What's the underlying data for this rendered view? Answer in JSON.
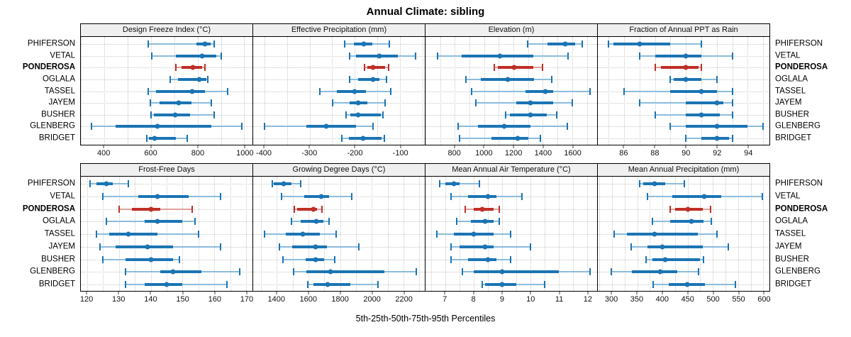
{
  "colors": {
    "series": "#1b74b4",
    "series_light": "#8cbcdc",
    "highlight": "#bf2f26",
    "highlight_light": "#dfa09a",
    "grid": "#c9c9c9",
    "strip_bg": "#f0f0f0",
    "panel_border": "#000000",
    "tick": "#404040"
  },
  "chart_data": {
    "type": "dotplot",
    "title": "Annual Climate: sibling",
    "xlabel": "5th-25th-50th-75th-95th Percentiles",
    "legend_note": "each row shows 5th-25th-50th-75th-95th percentile whisker/box/median-dot",
    "percentiles": [
      "5th",
      "25th",
      "50th",
      "75th",
      "95th"
    ],
    "stations": [
      "PHIFERSON",
      "VETAL",
      "PONDEROSA",
      "OGLALA",
      "TASSEL",
      "JAYEM",
      "BUSHER",
      "GLENBERG",
      "BRIDGET"
    ],
    "highlight_station": "PONDEROSA",
    "layout": {
      "rows": 2,
      "cols": 4,
      "grid": "dotted",
      "row_labels": "both-sides"
    },
    "panels": [
      {
        "title": "Design Freeze Index (°C)",
        "row": 0,
        "xlim": [
          300,
          1035
        ],
        "ticks": [
          400,
          600,
          800,
          1000
        ],
        "grid_step": 100,
        "values": [
          [
            590,
            795,
            833,
            856,
            870
          ],
          [
            605,
            707,
            818,
            880,
            902
          ],
          [
            707,
            730,
            780,
            820,
            831
          ],
          [
            682,
            717,
            808,
            838,
            843
          ],
          [
            588,
            622,
            776,
            833,
            930
          ],
          [
            598,
            637,
            720,
            773,
            860
          ],
          [
            601,
            612,
            704,
            768,
            870
          ],
          [
            345,
            450,
            627,
            858,
            990
          ],
          [
            581,
            591,
            617,
            707,
            755
          ]
        ]
      },
      {
        "title": "Effective Precipitation (mm)",
        "row": 0,
        "xlim": [
          -425,
          -45
        ],
        "ticks": [
          -400,
          -300,
          -200,
          -100
        ],
        "grid_step": 50,
        "values": [
          [
            -223,
            -202,
            -180,
            -161,
            -123
          ],
          [
            -211,
            -198,
            -146,
            -104,
            -65
          ],
          [
            -179,
            -172,
            -160,
            -133,
            -125
          ],
          [
            -211,
            -193,
            -160,
            -146,
            -130
          ],
          [
            -277,
            -240,
            -200,
            -175,
            -120
          ],
          [
            -249,
            -211,
            -193,
            -172,
            -133
          ],
          [
            -220,
            -210,
            -192,
            -142,
            -137
          ],
          [
            -400,
            -307,
            -263,
            -198,
            -160
          ],
          [
            -229,
            -213,
            -182,
            -140,
            -135
          ]
        ]
      },
      {
        "title": "Elevation (m)",
        "row": 0,
        "xlim": [
          600,
          1770
        ],
        "ticks": [
          800,
          1000,
          1200,
          1400,
          1600
        ],
        "grid_step": 100,
        "values": [
          [
            1295,
            1430,
            1552,
            1620,
            1668
          ],
          [
            682,
            848,
            1109,
            1333,
            1573
          ],
          [
            1069,
            1093,
            1202,
            1336,
            1397
          ],
          [
            877,
            976,
            1160,
            1341,
            1461
          ],
          [
            912,
            1282,
            1416,
            1469,
            1720
          ],
          [
            941,
            1221,
            1314,
            1469,
            1600
          ],
          [
            1146,
            1173,
            1314,
            1429,
            1493
          ],
          [
            821,
            957,
            1136,
            1317,
            1565
          ],
          [
            834,
            1048,
            1229,
            1301,
            1381
          ]
        ]
      },
      {
        "title": "Fraction of Annual PPT as Rain",
        "row": 0,
        "xlim": [
          84.3,
          95.4
        ],
        "ticks": [
          86,
          88,
          90,
          92,
          94
        ],
        "grid_step": 1,
        "values": [
          [
            85,
            85.3,
            87,
            89,
            91
          ],
          [
            87,
            88,
            90,
            91,
            93
          ],
          [
            88,
            88.4,
            90,
            90.8,
            91
          ],
          [
            89,
            89.2,
            90,
            91,
            92
          ],
          [
            86,
            89,
            91,
            92,
            93
          ],
          [
            87,
            90,
            92,
            92.4,
            93
          ],
          [
            88,
            90,
            91,
            92.2,
            93
          ],
          [
            89,
            90,
            92,
            94,
            95
          ],
          [
            90,
            91,
            92,
            92.8,
            93
          ]
        ]
      },
      {
        "title": "Frost-Free Days",
        "row": 1,
        "xlim": [
          118,
          172
        ],
        "ticks": [
          120,
          130,
          140,
          150,
          160,
          170
        ],
        "grid_step": 5,
        "values": [
          [
            121,
            123,
            126,
            128,
            133
          ],
          [
            125,
            136,
            142,
            152,
            162
          ],
          [
            130,
            134,
            140,
            143,
            153
          ],
          [
            126,
            138,
            142,
            150,
            154
          ],
          [
            123,
            127,
            133,
            142,
            155
          ],
          [
            124,
            129,
            139,
            147,
            162
          ],
          [
            125,
            132,
            140,
            147,
            149
          ],
          [
            132,
            143,
            147,
            156,
            168
          ],
          [
            132,
            138,
            145,
            150,
            164
          ]
        ]
      },
      {
        "title": "Growing Degree Days (°C)",
        "row": 1,
        "xlim": [
          1250,
          2335
        ],
        "ticks": [
          1400,
          1600,
          1800,
          2000,
          2200
        ],
        "grid_step": 100,
        "values": [
          [
            1370,
            1382,
            1445,
            1490,
            1550
          ],
          [
            1430,
            1575,
            1680,
            1730,
            1875
          ],
          [
            1510,
            1530,
            1630,
            1655,
            1685
          ],
          [
            1490,
            1552,
            1650,
            1695,
            1730
          ],
          [
            1320,
            1455,
            1565,
            1670,
            1775
          ],
          [
            1415,
            1495,
            1645,
            1715,
            1920
          ],
          [
            1440,
            1580,
            1645,
            1700,
            1765
          ],
          [
            1505,
            1585,
            1740,
            2080,
            2280
          ],
          [
            1595,
            1630,
            1720,
            1865,
            2040
          ]
        ]
      },
      {
        "title": "Mean Annual Air Temperature (°C)",
        "row": 1,
        "xlim": [
          6.3,
          12.35
        ],
        "ticks": [
          7,
          8,
          9,
          10,
          11,
          12
        ],
        "grid_step": 0.5,
        "values": [
          [
            6.8,
            7.0,
            7.3,
            7.5,
            8.2
          ],
          [
            7.2,
            7.8,
            8.5,
            8.8,
            9.7
          ],
          [
            7.7,
            8.0,
            8.3,
            8.7,
            8.9
          ],
          [
            7.4,
            7.9,
            8.4,
            8.7,
            8.9
          ],
          [
            6.7,
            7.3,
            8.0,
            8.7,
            9.3
          ],
          [
            7.2,
            7.5,
            8.4,
            8.7,
            10.0
          ],
          [
            7.2,
            7.8,
            8.5,
            8.8,
            9.3
          ],
          [
            7.6,
            8.0,
            9.0,
            11.0,
            12.1
          ],
          [
            8.3,
            8.4,
            9.0,
            9.5,
            10.5
          ]
        ]
      },
      {
        "title": "Mean Annual Precipitation (mm)",
        "row": 1,
        "xlim": [
          272,
          612
        ],
        "ticks": [
          300,
          350,
          400,
          450,
          500,
          550,
          600
        ],
        "grid_step": 25,
        "values": [
          [
            355,
            362,
            385,
            406,
            443
          ],
          [
            370,
            420,
            483,
            517,
            598
          ],
          [
            415,
            425,
            450,
            480,
            495
          ],
          [
            380,
            415,
            457,
            482,
            497
          ],
          [
            305,
            330,
            385,
            470,
            508
          ],
          [
            338,
            370,
            400,
            480,
            530
          ],
          [
            367,
            380,
            405,
            475,
            482
          ],
          [
            298,
            340,
            395,
            430,
            471
          ],
          [
            382,
            413,
            449,
            484,
            544
          ]
        ]
      }
    ]
  }
}
